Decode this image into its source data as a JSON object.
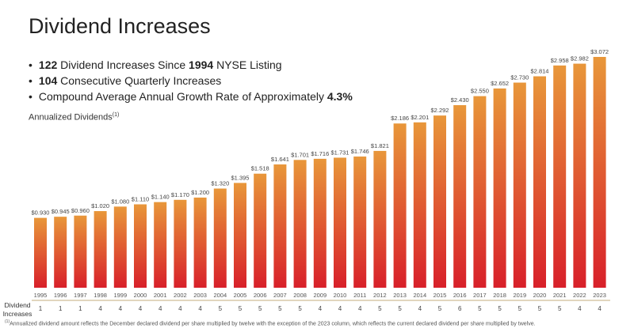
{
  "title": "Dividend Increases",
  "bullets": [
    {
      "bold": "122",
      "text": " Dividend Increases Since ",
      "bold2": "1994",
      "text2": " NYSE Listing"
    },
    {
      "bold": "104",
      "text": " Consecutive Quarterly Increases",
      "bold2": "",
      "text2": ""
    },
    {
      "bold": "",
      "text": "Compound Average Annual Growth Rate of Approximately ",
      "bold2": "4.3%",
      "text2": ""
    }
  ],
  "subtitle": "Annualized Dividends",
  "subtitle_note": "(1)",
  "row_label": "Dividend Increases",
  "footnote_mark": "(1)",
  "footnote": "Annualized dividend amount reflects the December declared dividend per share multiplied by twelve with the exception of the 2023 column, which reflects the current declared dividend per share multiplied by twelve.",
  "colors": {
    "bar_top": "#e8973a",
    "bar_bottom": "#d8202a",
    "axis_line": "#d9c9a8"
  },
  "chart_data": {
    "type": "bar",
    "categories": [
      "1995",
      "1996",
      "1997",
      "1998",
      "1999",
      "2000",
      "2001",
      "2002",
      "2003",
      "2004",
      "2005",
      "2006",
      "2007",
      "2008",
      "2009",
      "2010",
      "2011",
      "2012",
      "2013",
      "2014",
      "2015",
      "2016",
      "2017",
      "2018",
      "2019",
      "2020",
      "2021",
      "2022",
      "2023"
    ],
    "values": [
      0.93,
      0.945,
      0.96,
      1.02,
      1.08,
      1.11,
      1.14,
      1.17,
      1.2,
      1.32,
      1.395,
      1.518,
      1.641,
      1.701,
      1.716,
      1.731,
      1.746,
      1.821,
      2.186,
      2.201,
      2.292,
      2.43,
      2.55,
      2.652,
      2.73,
      2.814,
      2.958,
      2.982,
      3.072
    ],
    "data_labels": [
      "$0.930",
      "$0.945",
      "$0.960",
      "$1.020",
      "$1.080",
      "$1.110",
      "$1.140",
      "$1.170",
      "$1.200",
      "$1.320",
      "$1.395",
      "$1.518",
      "$1.641",
      "$1.701",
      "$1.716",
      "$1.731",
      "$1.746",
      "$1.821",
      "$2.186",
      "$2.201",
      "$2.292",
      "$2.430",
      "$2.550",
      "$2.652",
      "$2.730",
      "$2.814",
      "$2.958",
      "$2.982",
      "$3.072"
    ],
    "dividend_increases": [
      1,
      1,
      1,
      4,
      4,
      4,
      4,
      4,
      4,
      5,
      5,
      5,
      5,
      5,
      4,
      4,
      4,
      5,
      5,
      4,
      5,
      6,
      5,
      5,
      5,
      5,
      5,
      4,
      4
    ],
    "ylim": [
      0,
      3.072
    ],
    "grid": false
  }
}
